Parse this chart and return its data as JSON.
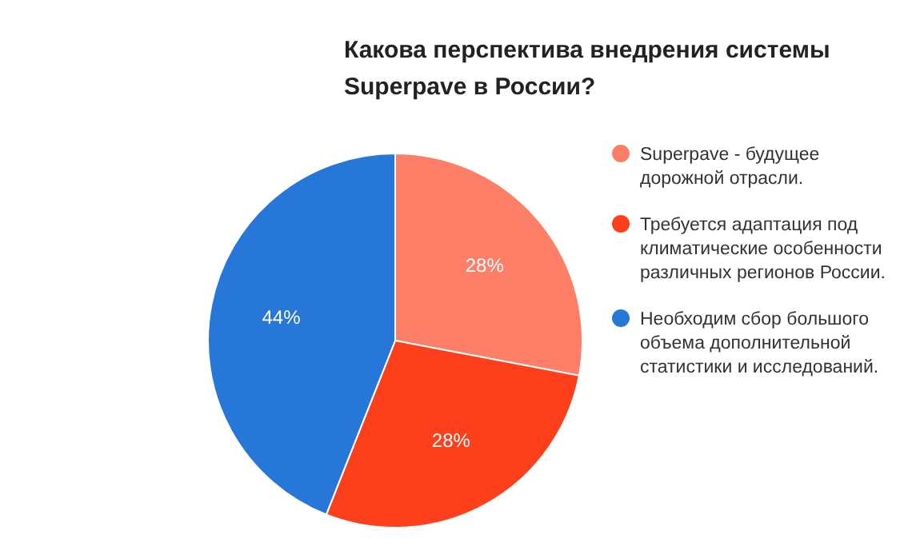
{
  "chart_data": {
    "type": "pie",
    "title": "Какова перспектива внедрения системы Superpave в России?",
    "categories": [
      "Superpave - будущее дорожной отрасли.",
      "Требуется адаптация под климатические особенности различных регионов России.",
      "Необходим сбор большого объема дополнительной статистики и исследований."
    ],
    "values": [
      28,
      28,
      44
    ],
    "colors": [
      "#fe7f67",
      "#fd3f1c",
      "#2777d9"
    ],
    "value_labels": [
      "28%",
      "28%",
      "44%"
    ],
    "legend": "right"
  }
}
